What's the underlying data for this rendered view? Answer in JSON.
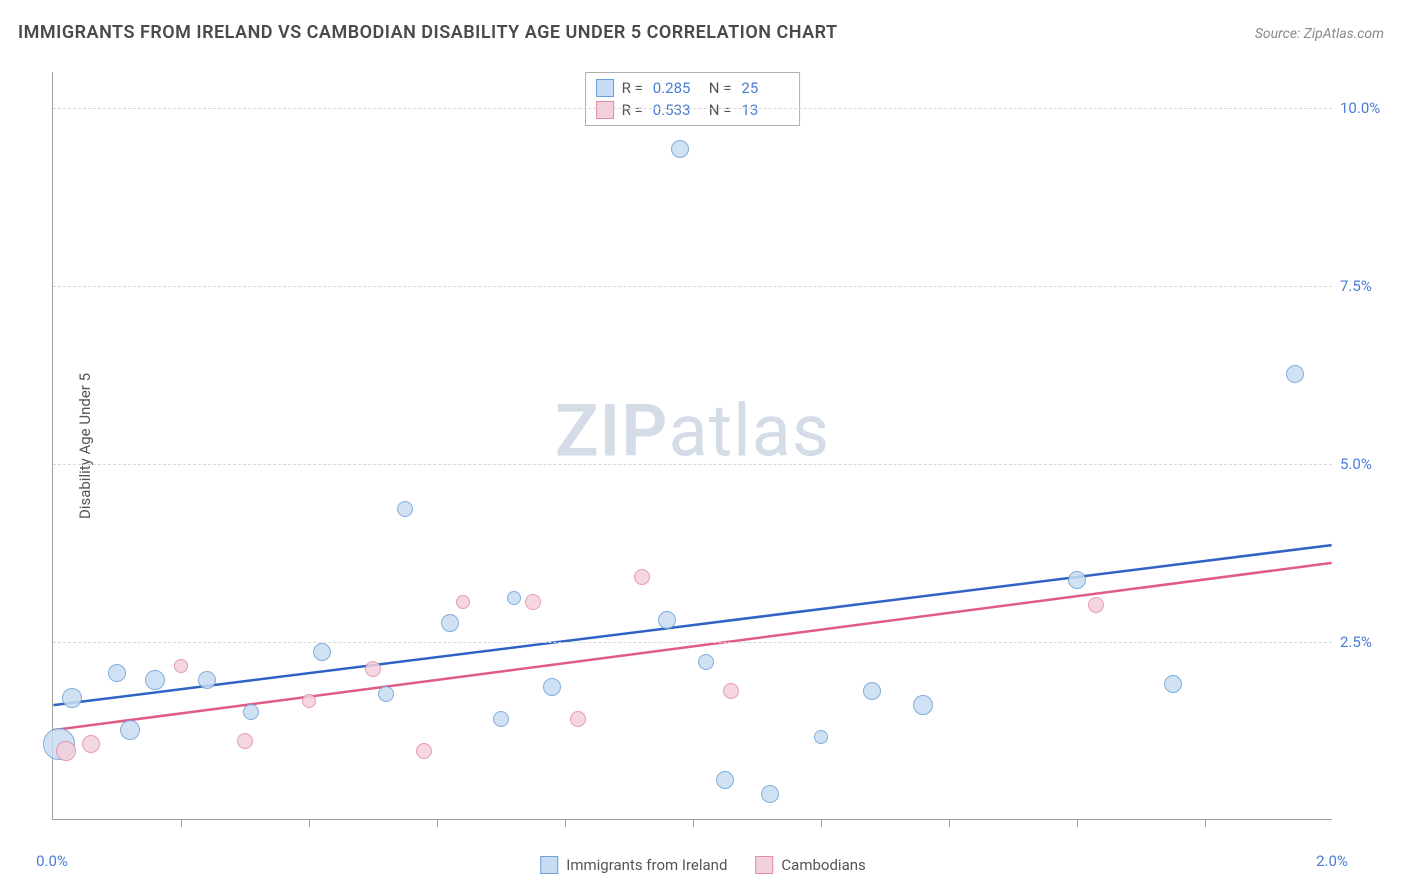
{
  "title": "IMMIGRANTS FROM IRELAND VS CAMBODIAN DISABILITY AGE UNDER 5 CORRELATION CHART",
  "source_label": "Source:",
  "source_value": "ZipAtlas.com",
  "y_axis_label": "Disability Age Under 5",
  "watermark": {
    "bold": "ZIP",
    "rest": "atlas"
  },
  "chart": {
    "type": "scatter",
    "background_color": "#ffffff",
    "grid_color": "#d8d8d8",
    "axis_color": "#a0a0a0",
    "tick_label_color": "#4a7dd4",
    "xlim": [
      0.0,
      2.0
    ],
    "ylim": [
      0.0,
      10.5
    ],
    "y_ticks": [
      {
        "v": 2.5,
        "label": "2.5%"
      },
      {
        "v": 5.0,
        "label": "5.0%"
      },
      {
        "v": 7.5,
        "label": "7.5%"
      },
      {
        "v": 10.0,
        "label": "10.0%"
      }
    ],
    "x_ticks_minor": [
      0.2,
      0.4,
      0.6,
      0.8,
      1.0,
      1.2,
      1.4,
      1.6,
      1.8
    ],
    "x_labels": [
      {
        "v": 0.0,
        "label": "0.0%"
      },
      {
        "v": 2.0,
        "label": "2.0%"
      }
    ],
    "series": [
      {
        "id": "ireland",
        "label": "Immigrants from Ireland",
        "fill": "#c7dcf2",
        "stroke": "#6fa0d8",
        "line_color": "#2f63c4",
        "marker_size_base": 12,
        "r_value": "0.285",
        "n_value": "25",
        "trend": {
          "x1": 0.0,
          "y1": 1.6,
          "x2": 2.0,
          "y2": 3.85
        },
        "points": [
          {
            "x": 0.01,
            "y": 1.05,
            "r": 16
          },
          {
            "x": 0.03,
            "y": 1.7,
            "r": 10
          },
          {
            "x": 0.12,
            "y": 1.25,
            "r": 10
          },
          {
            "x": 0.1,
            "y": 2.05,
            "r": 9
          },
          {
            "x": 0.16,
            "y": 1.95,
            "r": 10
          },
          {
            "x": 0.31,
            "y": 1.5,
            "r": 8
          },
          {
            "x": 0.42,
            "y": 2.35,
            "r": 9
          },
          {
            "x": 0.52,
            "y": 1.75,
            "r": 8
          },
          {
            "x": 0.55,
            "y": 4.35,
            "r": 8
          },
          {
            "x": 0.62,
            "y": 2.75,
            "r": 9
          },
          {
            "x": 0.72,
            "y": 3.1,
            "r": 7
          },
          {
            "x": 0.7,
            "y": 1.4,
            "r": 8
          },
          {
            "x": 0.78,
            "y": 1.85,
            "r": 9
          },
          {
            "x": 0.96,
            "y": 2.8,
            "r": 9
          },
          {
            "x": 0.98,
            "y": 9.4,
            "r": 9
          },
          {
            "x": 1.05,
            "y": 0.55,
            "r": 9
          },
          {
            "x": 1.02,
            "y": 2.2,
            "r": 8
          },
          {
            "x": 1.12,
            "y": 0.35,
            "r": 9
          },
          {
            "x": 1.28,
            "y": 1.8,
            "r": 9
          },
          {
            "x": 1.36,
            "y": 1.6,
            "r": 10
          },
          {
            "x": 1.6,
            "y": 3.35,
            "r": 9
          },
          {
            "x": 1.75,
            "y": 1.9,
            "r": 9
          },
          {
            "x": 1.94,
            "y": 6.25,
            "r": 9
          },
          {
            "x": 1.2,
            "y": 1.15,
            "r": 7
          },
          {
            "x": 0.24,
            "y": 1.95,
            "r": 9
          }
        ]
      },
      {
        "id": "cambodian",
        "label": "Cambodians",
        "fill": "#f3d1dc",
        "stroke": "#e38ba5",
        "line_color": "#e05c84",
        "marker_size_base": 10,
        "r_value": "0.533",
        "n_value": "13",
        "trend": {
          "x1": 0.0,
          "y1": 1.25,
          "x2": 2.0,
          "y2": 3.6
        },
        "points": [
          {
            "x": 0.02,
            "y": 0.95,
            "r": 10
          },
          {
            "x": 0.06,
            "y": 1.05,
            "r": 9
          },
          {
            "x": 0.2,
            "y": 2.15,
            "r": 7
          },
          {
            "x": 0.3,
            "y": 1.1,
            "r": 8
          },
          {
            "x": 0.5,
            "y": 2.1,
            "r": 8
          },
          {
            "x": 0.58,
            "y": 0.95,
            "r": 8
          },
          {
            "x": 0.64,
            "y": 3.05,
            "r": 7
          },
          {
            "x": 0.75,
            "y": 3.05,
            "r": 8
          },
          {
            "x": 0.82,
            "y": 1.4,
            "r": 8
          },
          {
            "x": 0.92,
            "y": 3.4,
            "r": 8
          },
          {
            "x": 1.06,
            "y": 1.8,
            "r": 8
          },
          {
            "x": 1.63,
            "y": 3.0,
            "r": 8
          },
          {
            "x": 0.4,
            "y": 1.65,
            "r": 7
          }
        ]
      }
    ]
  },
  "stat_legend": {
    "r_label": "R =",
    "n_label": "N ="
  },
  "bottom_legend_labels": [
    "Immigrants from Ireland",
    "Cambodians"
  ]
}
